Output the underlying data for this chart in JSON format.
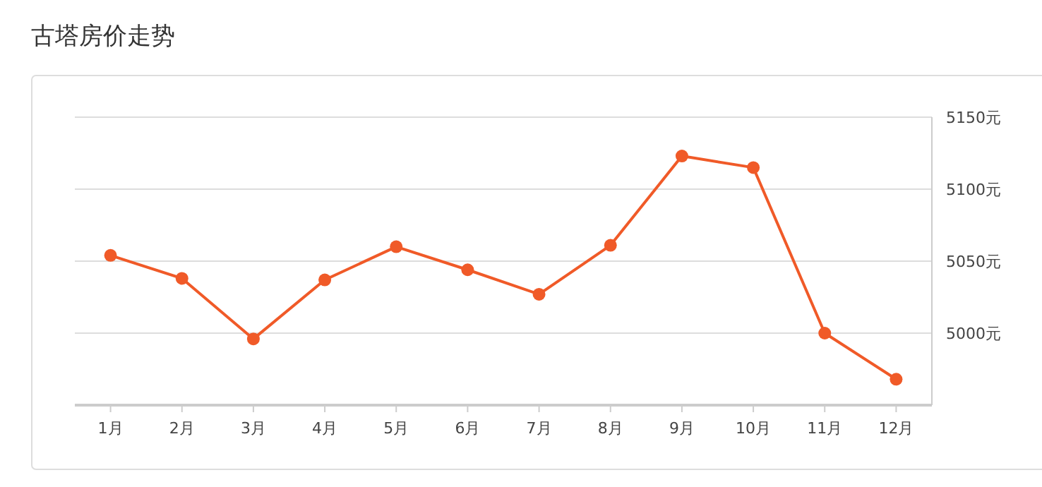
{
  "chart_data": {
    "type": "line",
    "title": "古塔房价走势",
    "categories": [
      "1月",
      "2月",
      "3月",
      "4月",
      "5月",
      "6月",
      "7月",
      "8月",
      "9月",
      "10月",
      "11月",
      "12月"
    ],
    "series": [
      {
        "color": "#f05a28",
        "values": [
          5054,
          5038,
          4996,
          5037,
          5060,
          5044,
          5027,
          5061,
          5123,
          5115,
          5000,
          4968
        ]
      }
    ],
    "ylim": [
      4950,
      5150
    ],
    "yticks": [
      {
        "value": 5000,
        "label": "5000元"
      },
      {
        "value": 5050,
        "label": "5050元"
      },
      {
        "value": 5100,
        "label": "5100元"
      },
      {
        "value": 5150,
        "label": "5150元"
      }
    ],
    "grid": "y",
    "marker": "circle",
    "line_style": "solid"
  }
}
